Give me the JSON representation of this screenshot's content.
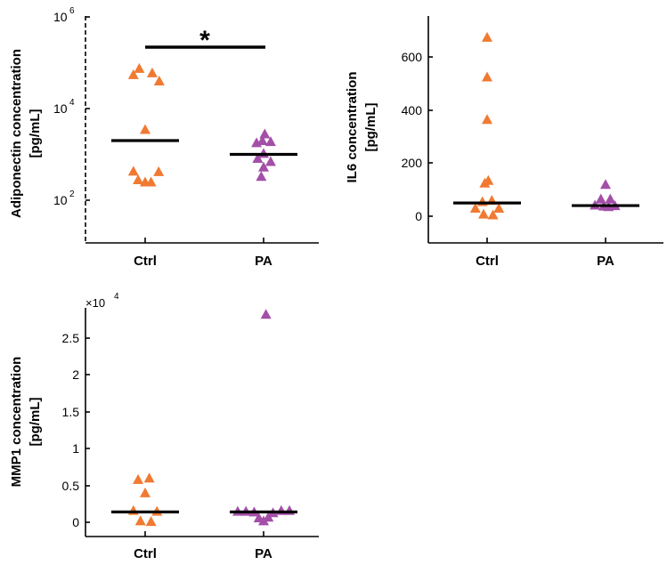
{
  "colors": {
    "ctrl": "#f07a32",
    "pa": "#a34fa8",
    "axis": "#000000"
  },
  "marker_icon": "triangle-up-icon",
  "chart_data": [
    {
      "id": "adiponectin",
      "type": "scatter",
      "scale": "log",
      "categories": [
        "Ctrl",
        "PA"
      ],
      "ylabel": [
        "Adiponectin concentration",
        "[pg/mL]"
      ],
      "ylim": [
        10,
        1000000
      ],
      "ticks": [
        {
          "value": 100,
          "base": "10",
          "exp": "2"
        },
        {
          "value": 10000,
          "base": "10",
          "exp": "4"
        },
        {
          "value": 1000000,
          "base": "10",
          "exp": "6"
        }
      ],
      "series": [
        {
          "name": "Ctrl",
          "values": [
            {
              "dx": -0.1,
              "y": 75000
            },
            {
              "dx": 0.12,
              "y": 60000
            },
            {
              "dx": -0.2,
              "y": 55000
            },
            {
              "dx": 0.24,
              "y": 40000
            },
            {
              "dx": 0.0,
              "y": 3500
            },
            {
              "dx": -0.2,
              "y": 430
            },
            {
              "dx": 0.23,
              "y": 420
            },
            {
              "dx": -0.12,
              "y": 280
            },
            {
              "dx": 0.0,
              "y": 250
            },
            {
              "dx": 0.1,
              "y": 250
            }
          ],
          "median": 2000
        },
        {
          "name": "PA",
          "values": [
            {
              "dx": 0.02,
              "y": 2800
            },
            {
              "dx": -0.02,
              "y": 2000
            },
            {
              "dx": 0.12,
              "y": 1900
            },
            {
              "dx": -0.12,
              "y": 1800
            },
            {
              "dx": 0.0,
              "y": 1050
            },
            {
              "dx": -0.1,
              "y": 820
            },
            {
              "dx": 0.12,
              "y": 700
            },
            {
              "dx": 0.0,
              "y": 530
            },
            {
              "dx": -0.04,
              "y": 330
            }
          ],
          "median": 1000
        }
      ],
      "significance": {
        "label": "*",
        "from": "Ctrl",
        "to": "PA",
        "y": 200000
      }
    },
    {
      "id": "il6",
      "type": "scatter",
      "scale": "linear",
      "categories": [
        "Ctrl",
        "PA"
      ],
      "ylabel": [
        "IL6 concentration",
        "[pg/mL]"
      ],
      "ylim": [
        -100,
        760
      ],
      "ticks": [
        {
          "value": 0,
          "label": "0"
        },
        {
          "value": 200,
          "label": "200"
        },
        {
          "value": 400,
          "label": "400"
        },
        {
          "value": 600,
          "label": "600"
        }
      ],
      "series": [
        {
          "name": "Ctrl",
          "values": [
            {
              "dx": 0.0,
              "y": 675
            },
            {
              "dx": 0.0,
              "y": 525
            },
            {
              "dx": 0.0,
              "y": 365
            },
            {
              "dx": 0.02,
              "y": 135
            },
            {
              "dx": -0.04,
              "y": 125
            },
            {
              "dx": 0.08,
              "y": 60
            },
            {
              "dx": -0.08,
              "y": 55
            },
            {
              "dx": -0.2,
              "y": 30
            },
            {
              "dx": 0.2,
              "y": 30
            },
            {
              "dx": -0.06,
              "y": 8
            },
            {
              "dx": 0.1,
              "y": 5
            }
          ],
          "median": 50
        },
        {
          "name": "PA",
          "values": [
            {
              "dx": 0.0,
              "y": 120
            },
            {
              "dx": -0.08,
              "y": 65
            },
            {
              "dx": 0.08,
              "y": 65
            },
            {
              "dx": -0.18,
              "y": 42
            },
            {
              "dx": 0.16,
              "y": 40
            },
            {
              "dx": -0.03,
              "y": 38
            },
            {
              "dx": 0.05,
              "y": 36
            }
          ],
          "median": 40
        }
      ]
    },
    {
      "id": "mmp1",
      "type": "scatter",
      "scale": "linear",
      "categories": [
        "Ctrl",
        "PA"
      ],
      "ylabel": [
        "MMP1 concentration",
        "[pg/mL]"
      ],
      "ylim": [
        -2000,
        29000
      ],
      "multiplier": {
        "prefix": "×10",
        "exp": "4"
      },
      "ticks": [
        {
          "value": 0,
          "label": "0"
        },
        {
          "value": 5000,
          "label": "0.5"
        },
        {
          "value": 10000,
          "label": "1"
        },
        {
          "value": 15000,
          "label": "1.5"
        },
        {
          "value": 20000,
          "label": "2"
        },
        {
          "value": 25000,
          "label": "2.5"
        }
      ],
      "series": [
        {
          "name": "Ctrl",
          "values": [
            {
              "dx": -0.12,
              "y": 5800
            },
            {
              "dx": 0.07,
              "y": 6000
            },
            {
              "dx": 0.0,
              "y": 4000
            },
            {
              "dx": -0.2,
              "y": 1600
            },
            {
              "dx": 0.2,
              "y": 1500
            },
            {
              "dx": -0.08,
              "y": 200
            },
            {
              "dx": 0.1,
              "y": 100
            }
          ],
          "median": 1400
        },
        {
          "name": "PA",
          "values": [
            {
              "dx": 0.04,
              "y": 28200
            },
            {
              "dx": -0.44,
              "y": 1500
            },
            {
              "dx": -0.3,
              "y": 1500
            },
            {
              "dx": -0.16,
              "y": 1400
            },
            {
              "dx": 0.3,
              "y": 1600
            },
            {
              "dx": 0.44,
              "y": 1600
            },
            {
              "dx": 0.16,
              "y": 1300
            },
            {
              "dx": -0.08,
              "y": 600
            },
            {
              "dx": 0.08,
              "y": 700
            },
            {
              "dx": 0.0,
              "y": 200
            }
          ],
          "median": 1400
        }
      ]
    }
  ]
}
